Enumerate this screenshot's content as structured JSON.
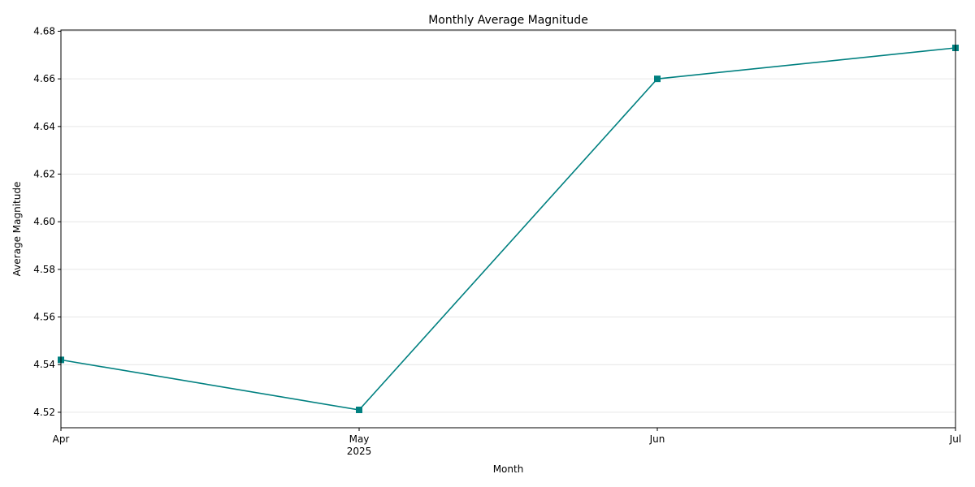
{
  "chart_data": {
    "type": "line",
    "title": "Monthly Average Magnitude",
    "xlabel": "Month",
    "ylabel": "Average Magnitude",
    "x": [
      "2025-04",
      "2025-05",
      "2025-06",
      "2025-07"
    ],
    "x_tick_labels": [
      "Apr",
      "May",
      "Jun",
      "Jul"
    ],
    "x_year_label": "2025",
    "series": [
      {
        "values": [
          4.542,
          4.521,
          4.66,
          4.673
        ],
        "color": "#008080",
        "marker": "square"
      }
    ],
    "ylim": [
      4.5135,
      4.6805
    ],
    "y_ticks": [
      4.52,
      4.54,
      4.56,
      4.58,
      4.6,
      4.62,
      4.64,
      4.66,
      4.68
    ],
    "y_tick_labels": [
      "4.52",
      "4.54",
      "4.56",
      "4.58",
      "4.60",
      "4.62",
      "4.64",
      "4.66",
      "4.68"
    ],
    "grid": "horizontal",
    "legend": "none"
  }
}
